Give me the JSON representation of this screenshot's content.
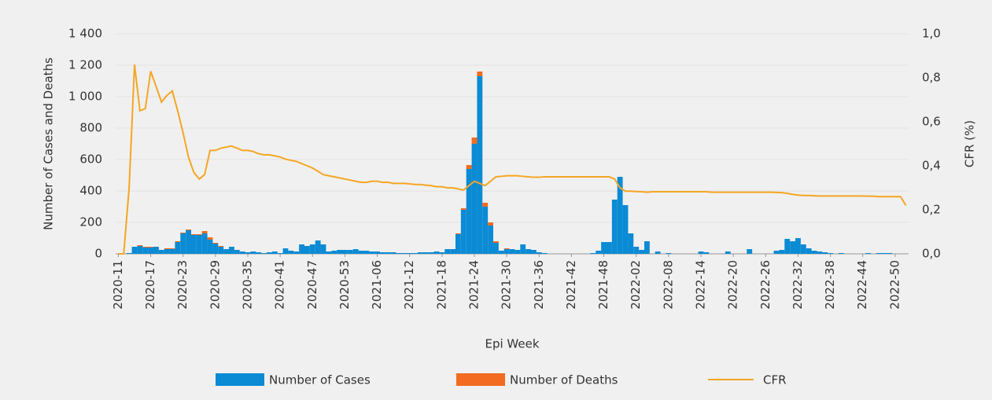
{
  "chart_data": {
    "type": "bar-line",
    "xlabel": "Epi Week",
    "ylabel": "Number of Cases and Deaths",
    "y2label": "CFR (%)",
    "categories": [
      "2020-11",
      null,
      null,
      null,
      null,
      null,
      "2020-17",
      null,
      null,
      null,
      null,
      null,
      "2020-23",
      null,
      null,
      null,
      null,
      null,
      "2020-29",
      null,
      null,
      null,
      null,
      null,
      "2020-35",
      null,
      null,
      null,
      null,
      null,
      "2020-41",
      null,
      null,
      null,
      null,
      null,
      "2020-47",
      null,
      null,
      null,
      null,
      null,
      "2020-53",
      null,
      null,
      null,
      null,
      null,
      "2021-06",
      null,
      null,
      null,
      null,
      null,
      "2021-12",
      null,
      null,
      null,
      null,
      null,
      "2021-18",
      null,
      null,
      null,
      null,
      null,
      "2021-24",
      null,
      null,
      null,
      null,
      null,
      "2021-30",
      null,
      null,
      null,
      null,
      null,
      "2021-36",
      null,
      null,
      null,
      null,
      null,
      "2021-42",
      null,
      null,
      null,
      null,
      null,
      "2021-48",
      null,
      null,
      null,
      null,
      null,
      "2022-02",
      null,
      null,
      null,
      null,
      null,
      "2022-08",
      null,
      null,
      null,
      null,
      null,
      "2022-14",
      null,
      null,
      null,
      null,
      null,
      "2022-20",
      null,
      null,
      null,
      null,
      null,
      "2022-26",
      null,
      null,
      null,
      null,
      null,
      "2022-32",
      null,
      null,
      null,
      null,
      null,
      "2022-38",
      null,
      null,
      null,
      null,
      null,
      "2022-44",
      null,
      null,
      null,
      null,
      null,
      "2022-50",
      null,
      null
    ],
    "series": [
      {
        "name": "Number of Cases",
        "color": "#0b8bd4",
        "values": [
          0,
          0,
          5,
          45,
          50,
          40,
          40,
          45,
          25,
          30,
          30,
          75,
          130,
          150,
          120,
          120,
          130,
          90,
          65,
          45,
          30,
          45,
          25,
          15,
          10,
          15,
          10,
          5,
          10,
          15,
          5,
          35,
          20,
          15,
          60,
          50,
          60,
          85,
          60,
          15,
          20,
          25,
          25,
          25,
          30,
          20,
          20,
          15,
          15,
          10,
          10,
          10,
          5,
          5,
          5,
          5,
          10,
          10,
          10,
          15,
          10,
          30,
          30,
          125,
          280,
          540,
          700,
          1130,
          300,
          180,
          70,
          20,
          30,
          30,
          25,
          60,
          30,
          25,
          10,
          5,
          0,
          0,
          0,
          0,
          0,
          0,
          0,
          0,
          5,
          20,
          75,
          75,
          345,
          490,
          310,
          130,
          45,
          25,
          80,
          0,
          15,
          0,
          5,
          0,
          0,
          0,
          0,
          0,
          15,
          10,
          0,
          0,
          0,
          15,
          0,
          0,
          0,
          30,
          0,
          0,
          0,
          0,
          20,
          25,
          95,
          80,
          100,
          60,
          35,
          20,
          15,
          10,
          5,
          0,
          5,
          0,
          0,
          0,
          0,
          5,
          0,
          5,
          5,
          5,
          0,
          0,
          0
        ]
      },
      {
        "name": "Number of Deaths",
        "color": "#f26b21",
        "values": [
          0,
          0,
          0,
          0,
          5,
          5,
          5,
          0,
          0,
          5,
          5,
          5,
          5,
          5,
          5,
          5,
          15,
          15,
          5,
          5,
          0,
          0,
          0,
          0,
          0,
          0,
          0,
          0,
          0,
          0,
          0,
          0,
          0,
          0,
          0,
          0,
          0,
          0,
          0,
          0,
          0,
          0,
          0,
          0,
          0,
          0,
          0,
          0,
          0,
          0,
          0,
          0,
          0,
          0,
          0,
          0,
          0,
          0,
          0,
          0,
          0,
          0,
          0,
          5,
          10,
          25,
          40,
          30,
          25,
          20,
          10,
          0,
          5,
          0,
          0,
          0,
          0,
          0,
          0,
          0,
          0,
          0,
          0,
          0,
          0,
          0,
          0,
          0,
          0,
          0,
          0,
          0,
          0,
          0,
          0,
          0,
          0,
          0,
          0,
          0,
          0,
          0,
          0,
          0,
          0,
          0,
          0,
          0,
          0,
          0,
          0,
          0,
          0,
          0,
          0,
          0,
          0,
          0,
          0,
          0,
          0,
          0,
          0,
          0,
          0,
          0,
          0,
          0,
          0,
          0,
          0,
          0,
          0,
          0,
          0,
          0,
          0,
          0,
          0,
          0,
          0,
          0,
          0,
          0,
          0,
          0,
          0
        ]
      },
      {
        "name": "CFR",
        "color": "#f5a623",
        "axis": "y2",
        "values": [
          0,
          0,
          0.3,
          0.86,
          0.65,
          0.66,
          0.83,
          0.76,
          0.69,
          0.72,
          0.74,
          0.65,
          0.55,
          0.44,
          0.37,
          0.34,
          0.36,
          0.47,
          0.47,
          0.48,
          0.485,
          0.49,
          0.48,
          0.47,
          0.47,
          0.465,
          0.455,
          0.45,
          0.45,
          0.445,
          0.44,
          0.43,
          0.425,
          0.42,
          0.41,
          0.4,
          0.39,
          0.375,
          0.36,
          0.355,
          0.35,
          0.345,
          0.34,
          0.335,
          0.33,
          0.325,
          0.325,
          0.33,
          0.33,
          0.325,
          0.325,
          0.32,
          0.32,
          0.32,
          0.318,
          0.315,
          0.315,
          0.312,
          0.31,
          0.305,
          0.305,
          0.3,
          0.3,
          0.295,
          0.29,
          0.31,
          0.33,
          0.32,
          0.31,
          0.33,
          0.35,
          0.352,
          0.355,
          0.355,
          0.355,
          0.352,
          0.35,
          0.348,
          0.348,
          0.35,
          0.35,
          0.35,
          0.35,
          0.35,
          0.35,
          0.35,
          0.35,
          0.35,
          0.35,
          0.35,
          0.35,
          0.35,
          0.34,
          0.3,
          0.285,
          0.285,
          0.283,
          0.282,
          0.28,
          0.282,
          0.282,
          0.282,
          0.282,
          0.282,
          0.282,
          0.282,
          0.282,
          0.282,
          0.282,
          0.282,
          0.28,
          0.28,
          0.28,
          0.28,
          0.28,
          0.28,
          0.28,
          0.28,
          0.28,
          0.28,
          0.28,
          0.28,
          0.279,
          0.278,
          0.275,
          0.27,
          0.267,
          0.265,
          0.265,
          0.264,
          0.263,
          0.263,
          0.263,
          0.263,
          0.263,
          0.263,
          0.263,
          0.263,
          0.263,
          0.262,
          0.262,
          0.26,
          0.26,
          0.26,
          0.26,
          0.26,
          0.22
        ]
      }
    ],
    "ylim": [
      0,
      1400
    ],
    "yticks": [
      0,
      200,
      400,
      600,
      800,
      {
        "value": 1000,
        "label": "1 000"
      },
      {
        "value": 1200,
        "label": "1 200"
      },
      {
        "value": 1400,
        "label": "1 400"
      }
    ],
    "y2lim": [
      0,
      1
    ],
    "y2ticks": [
      {
        "value": 0,
        "label": "0,0"
      },
      {
        "value": 0.2,
        "label": "0,2"
      },
      {
        "value": 0.4,
        "label": "0,4"
      },
      {
        "value": 0.6,
        "label": "0,6"
      },
      {
        "value": 0.8,
        "label": "0,8"
      },
      {
        "value": 1,
        "label": "1,0"
      }
    ],
    "grid": true
  }
}
